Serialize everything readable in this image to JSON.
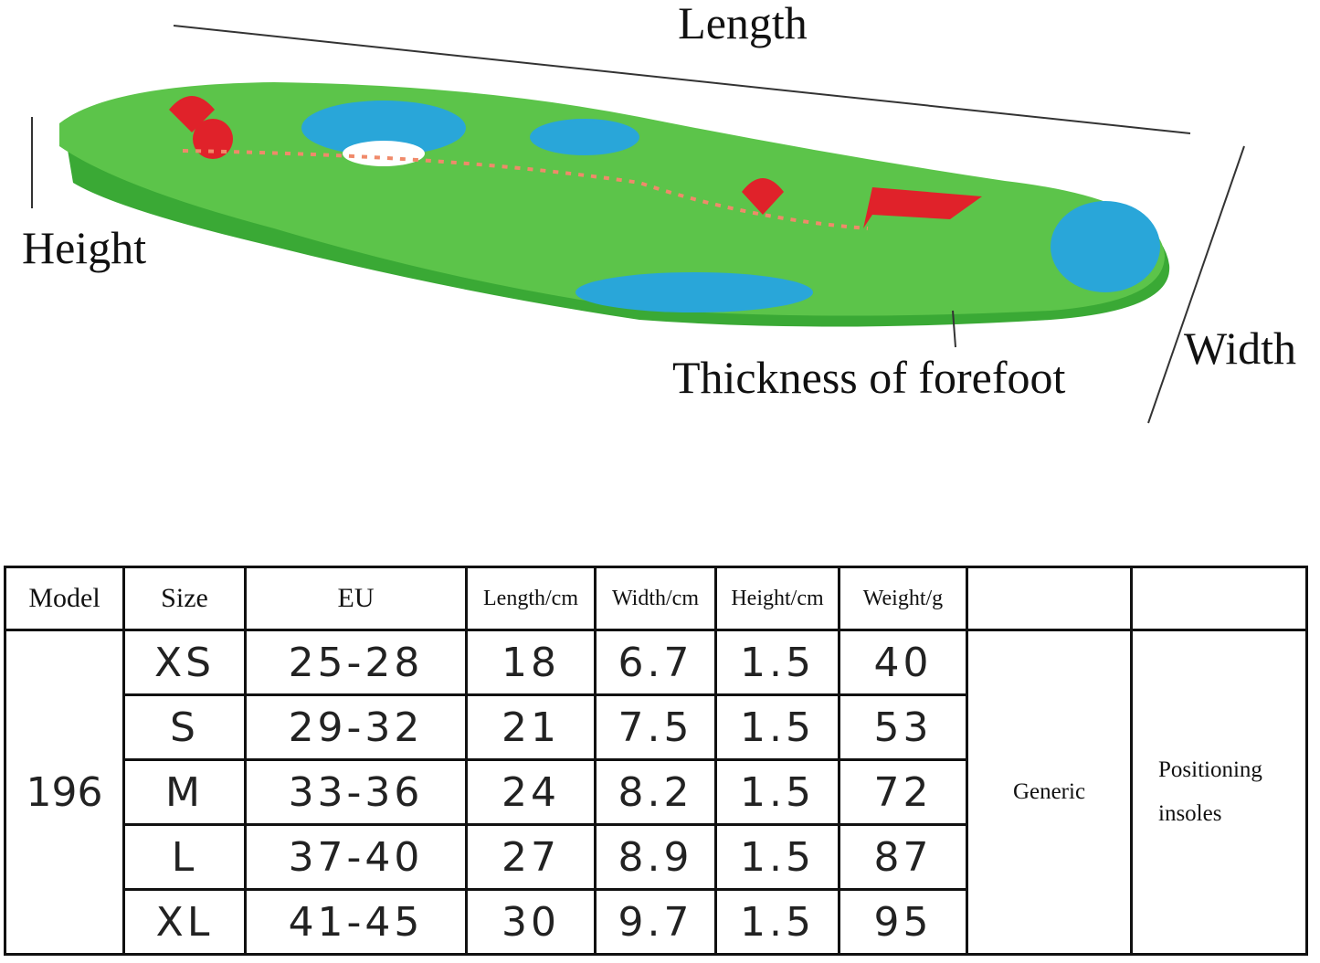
{
  "labels": {
    "length": "Length",
    "height": "Height",
    "width": "Width",
    "thickness": "Thickness of forefoot"
  },
  "table": {
    "header": [
      "Model",
      "Size",
      "EU",
      "Length/cm",
      "Width/cm",
      "Height/cm",
      "Weight/g"
    ],
    "model": "196",
    "rows": [
      [
        "XS",
        "25-28",
        "18",
        "6.7",
        "1.5",
        "40"
      ],
      [
        "S",
        "29-32",
        "21",
        "7.5",
        "1.5",
        "53"
      ],
      [
        "M",
        "33-36",
        "24",
        "8.2",
        "1.5",
        "72"
      ],
      [
        "L",
        "37-40",
        "27",
        "8.9",
        "1.5",
        "87"
      ],
      [
        "XL",
        "41-45",
        "30",
        "9.7",
        "1.5",
        "95"
      ]
    ],
    "type": "Generic",
    "use": "Positioning insoles"
  }
}
